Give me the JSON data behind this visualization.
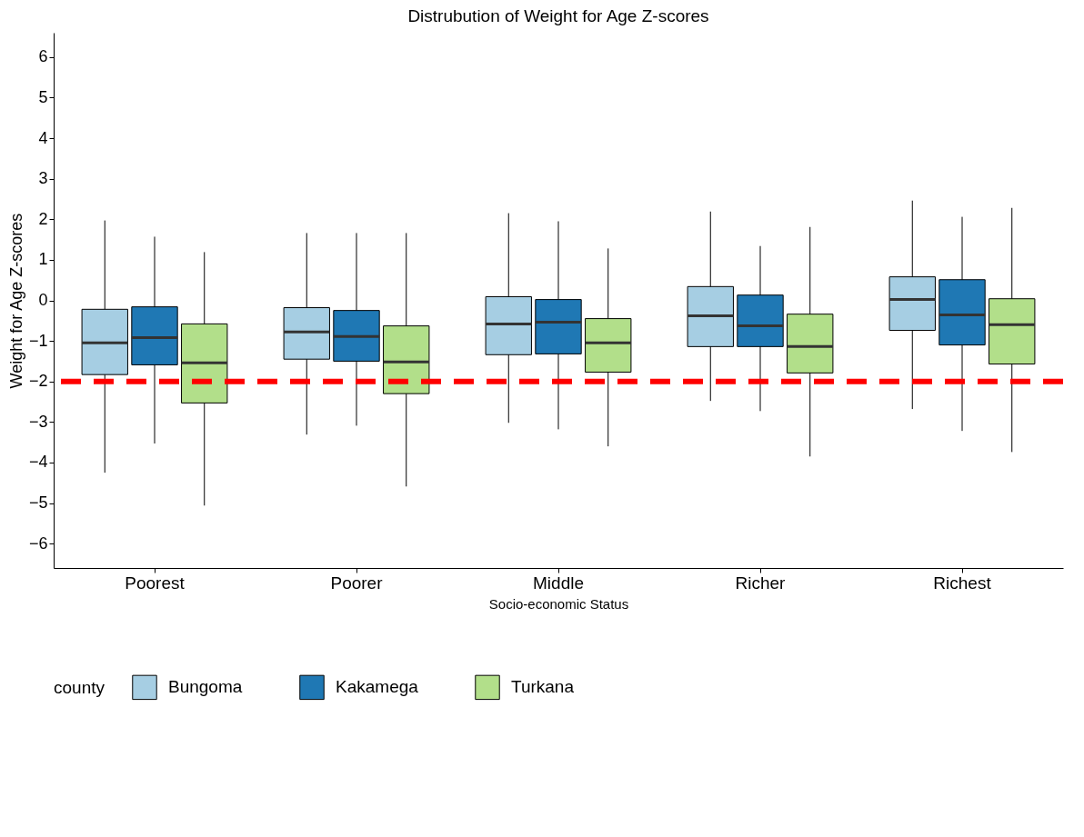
{
  "chart_data": {
    "type": "box",
    "title": "Distrubution of Weight for Age Z-scores",
    "xlabel": "Socio-economic Status",
    "ylabel": "Weight for Age Z-scores",
    "legend_title": "county",
    "legend": "bottom",
    "categories": [
      "Poorest",
      "Poorer",
      "Middle",
      "Richer",
      "Richest"
    ],
    "ylim": [
      -6.6,
      6.6
    ],
    "yticks": [
      -6,
      -5,
      -4,
      -3,
      -2,
      -1,
      0,
      1,
      2,
      3,
      4,
      5,
      6
    ],
    "series": [
      {
        "name": "Bungoma",
        "color": "#a6cee3",
        "boxes": [
          {
            "low": -4.25,
            "q1": -1.83,
            "median": -1.05,
            "q3": -0.22,
            "high": 1.97
          },
          {
            "low": -3.31,
            "q1": -1.45,
            "median": -0.78,
            "q3": -0.18,
            "high": 1.66
          },
          {
            "low": -3.02,
            "q1": -1.34,
            "median": -0.58,
            "q3": 0.09,
            "high": 2.15
          },
          {
            "low": -2.48,
            "q1": -1.14,
            "median": -0.38,
            "q3": 0.34,
            "high": 2.19
          },
          {
            "low": -2.68,
            "q1": -0.74,
            "median": 0.02,
            "q3": 0.58,
            "high": 2.46
          }
        ]
      },
      {
        "name": "Kakamega",
        "color": "#1f78b4",
        "boxes": [
          {
            "low": -3.53,
            "q1": -1.59,
            "median": -0.92,
            "q3": -0.16,
            "high": 1.57
          },
          {
            "low": -3.09,
            "q1": -1.5,
            "median": -0.89,
            "q3": -0.25,
            "high": 1.66
          },
          {
            "low": -3.18,
            "q1": -1.32,
            "median": -0.54,
            "q3": 0.02,
            "high": 1.95
          },
          {
            "low": -2.73,
            "q1": -1.14,
            "median": -0.63,
            "q3": 0.13,
            "high": 1.34
          },
          {
            "low": -3.22,
            "q1": -1.1,
            "median": -0.36,
            "q3": 0.51,
            "high": 2.06
          }
        ]
      },
      {
        "name": "Turkana",
        "color": "#b2df8a",
        "boxes": [
          {
            "low": -5.06,
            "q1": -2.53,
            "median": -1.54,
            "q3": -0.58,
            "high": 1.19
          },
          {
            "low": -4.59,
            "q1": -2.3,
            "median": -1.52,
            "q3": -0.63,
            "high": 1.66
          },
          {
            "low": -3.6,
            "q1": -1.77,
            "median": -1.05,
            "q3": -0.45,
            "high": 1.28
          },
          {
            "low": -3.85,
            "q1": -1.79,
            "median": -1.14,
            "q3": -0.34,
            "high": 1.81
          },
          {
            "low": -3.74,
            "q1": -1.57,
            "median": -0.6,
            "q3": 0.04,
            "high": 2.28
          }
        ]
      }
    ],
    "ref_lines": [
      {
        "axis": "y",
        "value": -2,
        "color": "#ff0000",
        "line_style": "dashed"
      }
    ]
  }
}
